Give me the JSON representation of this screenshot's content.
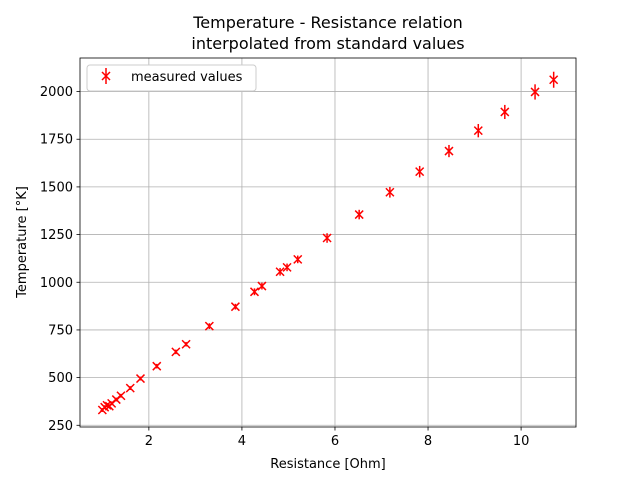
{
  "chart_data": {
    "type": "scatter",
    "title_line1": "Temperature - Resistance relation",
    "title_line2": "interpolated from standard values",
    "xlabel": "Resistance [Ohm]",
    "ylabel": "Temperature [°K]",
    "xlim": [
      0.52,
      11.18
    ],
    "ylim": [
      241,
      2176
    ],
    "xticks": [
      2,
      4,
      6,
      8,
      10
    ],
    "yticks": [
      250,
      500,
      750,
      1000,
      1250,
      1500,
      1750,
      2000
    ],
    "grid": true,
    "legend_position": "top-left",
    "series": [
      {
        "name": "measured values",
        "color": "#ff0000",
        "marker": "x",
        "points": [
          {
            "x": 1.0,
            "y": 330,
            "err": 10
          },
          {
            "x": 1.05,
            "y": 345,
            "err": 10
          },
          {
            "x": 1.1,
            "y": 355,
            "err": 10
          },
          {
            "x": 1.15,
            "y": 350,
            "err": 10
          },
          {
            "x": 1.2,
            "y": 365,
            "err": 10
          },
          {
            "x": 1.3,
            "y": 385,
            "err": 10
          },
          {
            "x": 1.4,
            "y": 405,
            "err": 10
          },
          {
            "x": 1.6,
            "y": 445,
            "err": 10
          },
          {
            "x": 1.82,
            "y": 495,
            "err": 10
          },
          {
            "x": 2.17,
            "y": 560,
            "err": 12
          },
          {
            "x": 2.58,
            "y": 635,
            "err": 12
          },
          {
            "x": 2.8,
            "y": 675,
            "err": 12
          },
          {
            "x": 3.3,
            "y": 770,
            "err": 15
          },
          {
            "x": 3.86,
            "y": 872,
            "err": 15
          },
          {
            "x": 4.27,
            "y": 950,
            "err": 18
          },
          {
            "x": 4.43,
            "y": 980,
            "err": 18
          },
          {
            "x": 4.82,
            "y": 1055,
            "err": 20
          },
          {
            "x": 4.97,
            "y": 1078,
            "err": 20
          },
          {
            "x": 5.2,
            "y": 1120,
            "err": 20
          },
          {
            "x": 5.83,
            "y": 1232,
            "err": 25
          },
          {
            "x": 6.52,
            "y": 1355,
            "err": 25
          },
          {
            "x": 7.18,
            "y": 1472,
            "err": 28
          },
          {
            "x": 7.82,
            "y": 1580,
            "err": 30
          },
          {
            "x": 8.45,
            "y": 1688,
            "err": 32
          },
          {
            "x": 9.08,
            "y": 1795,
            "err": 35
          },
          {
            "x": 9.65,
            "y": 1893,
            "err": 37
          },
          {
            "x": 10.3,
            "y": 1998,
            "err": 40
          },
          {
            "x": 10.7,
            "y": 2062,
            "err": 42
          }
        ]
      }
    ]
  }
}
